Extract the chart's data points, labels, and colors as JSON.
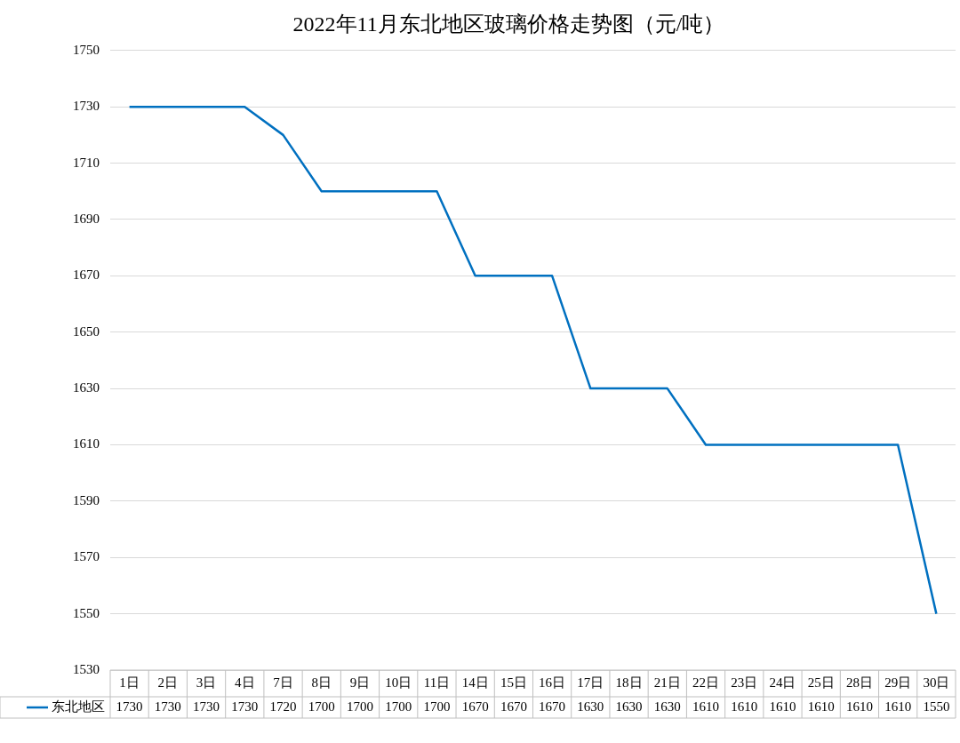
{
  "chart_data": {
    "type": "line",
    "title": "2022年11月东北地区玻璃价格走势图（元/吨）",
    "categories": [
      "1日",
      "2日",
      "3日",
      "4日",
      "7日",
      "8日",
      "9日",
      "10日",
      "11日",
      "14日",
      "15日",
      "16日",
      "17日",
      "18日",
      "21日",
      "22日",
      "23日",
      "24日",
      "25日",
      "28日",
      "29日",
      "30日"
    ],
    "series": [
      {
        "name": "东北地区",
        "color": "#0070c0",
        "values": [
          1730,
          1730,
          1730,
          1730,
          1720,
          1700,
          1700,
          1700,
          1700,
          1670,
          1670,
          1670,
          1630,
          1630,
          1630,
          1610,
          1610,
          1610,
          1610,
          1610,
          1610,
          1550
        ]
      }
    ],
    "ylim": [
      1530,
      1750
    ],
    "yticks": [
      1530,
      1550,
      1570,
      1590,
      1610,
      1630,
      1650,
      1670,
      1690,
      1710,
      1730,
      1750
    ],
    "grid": "y",
    "legend": "bottom",
    "marker": "none",
    "line_style": "solid",
    "data_labels": true
  }
}
